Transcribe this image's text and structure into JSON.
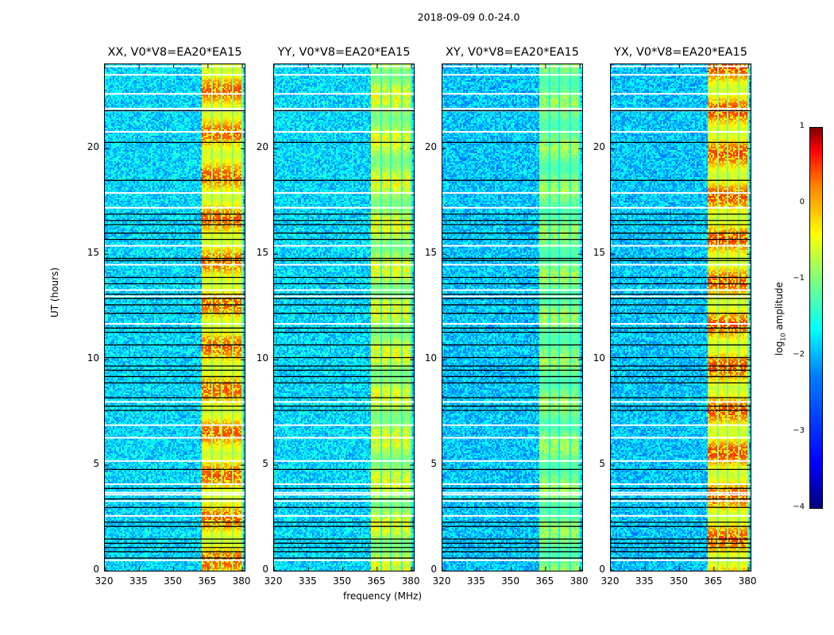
{
  "chart_data": {
    "type": "heatmap",
    "title": "2018-09-09 0.0-24.0",
    "xlabel": "frequency (MHz)",
    "ylabel": "UT (hours)",
    "xlim": [
      320,
      381
    ],
    "ylim": [
      0,
      24
    ],
    "xticks": [
      "320",
      "335",
      "350",
      "365",
      "380"
    ],
    "xtick_values": [
      320,
      335,
      350,
      365,
      380
    ],
    "yticks": [
      "0",
      "5",
      "10",
      "15",
      "20"
    ],
    "ytick_values": [
      0,
      5,
      10,
      15,
      20
    ],
    "colormap": "jet",
    "colorbar": {
      "label_main": "log",
      "label_sub": "10",
      "label_rest": " amplitude",
      "range": [
        -4,
        1
      ],
      "ticks": [
        "1",
        "0",
        "−1",
        "−2",
        "−3",
        "−4"
      ],
      "tick_values": [
        1,
        0,
        -1,
        -2,
        -3,
        -4
      ]
    },
    "signal_band_mhz": [
      362,
      380
    ],
    "sub_bands_mhz": [
      [
        362,
        366
      ],
      [
        366.5,
        370.5
      ],
      [
        371,
        375
      ],
      [
        375.5,
        379.5
      ]
    ],
    "flagged_white_hours": [
      0.5,
      2.6,
      3.3,
      3.6,
      3.7,
      4.1,
      5.2,
      6.3,
      6.9,
      8.0,
      11.7,
      13.0,
      13.3,
      14.5,
      15.4,
      17.2,
      17.9,
      20.8,
      21.8,
      21.9,
      22.6,
      23.5,
      23.9
    ],
    "flagged_black_hours": [
      0.6,
      0.9,
      1.1,
      1.3,
      1.5,
      2.1,
      2.3,
      3.0,
      3.4,
      3.9,
      4.8,
      7.6,
      7.8,
      8.2,
      8.9,
      9.2,
      9.5,
      9.7,
      10.1,
      10.7,
      11.3,
      11.5,
      12.2,
      12.6,
      12.9,
      13.1,
      13.6,
      13.9,
      14.7,
      14.8,
      15.7,
      16.0,
      16.4,
      16.6,
      16.9,
      18.5,
      20.3,
      21.8
    ],
    "panels": [
      {
        "title": "XX, V0*V8=EA20*EA15",
        "baseline_log_amp": -2.3,
        "band_log_amp": -1.1,
        "peak_log_amp": 0.0
      },
      {
        "title": "YY, V0*V8=EA20*EA15",
        "baseline_log_amp": -2.3,
        "band_log_amp": -1.5,
        "peak_log_amp": -0.8
      },
      {
        "title": "XY, V0*V8=EA20*EA15",
        "baseline_log_amp": -2.4,
        "band_log_amp": -1.7,
        "peak_log_amp": -1.2
      },
      {
        "title": "YX, V0*V8=EA20*EA15",
        "baseline_log_amp": -2.4,
        "band_log_amp": -1.1,
        "peak_log_amp": 0.1
      }
    ]
  }
}
